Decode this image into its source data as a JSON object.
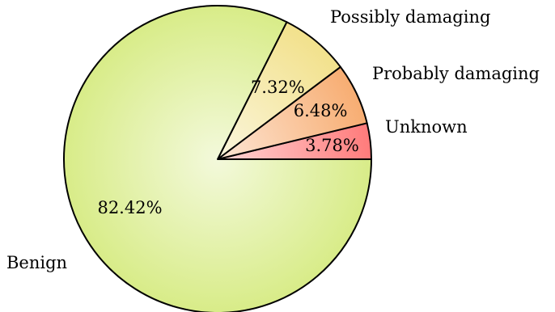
{
  "chart_data": {
    "type": "pie",
    "slices": [
      {
        "label": "Unknown",
        "value": 3.78,
        "value_text": "3.78%",
        "color": "#ff7b7b"
      },
      {
        "label": "Probably damaging",
        "value": 6.48,
        "value_text": "6.48%",
        "color": "#f7ad72"
      },
      {
        "label": "Possibly damaging",
        "value": 7.32,
        "value_text": "7.32%",
        "color": "#f2e18c"
      },
      {
        "label": "Benign",
        "value": 82.42,
        "value_text": "82.42%",
        "color": "#d8ec88"
      }
    ],
    "start": "0 degrees (3 o'clock), counter-clockwise",
    "legend": "none (category labels outside slices)"
  }
}
